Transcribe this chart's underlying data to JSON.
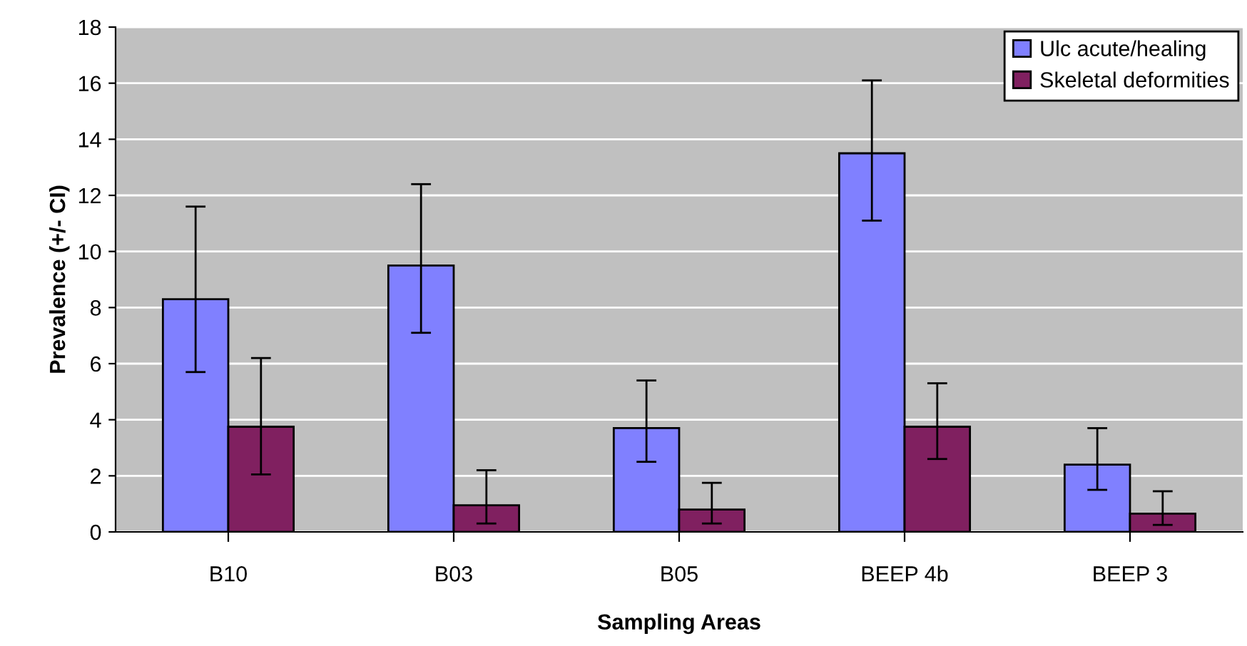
{
  "chart_data": {
    "type": "bar",
    "xlabel": "Sampling Areas",
    "ylabel": "Prevalence (+/- CI)",
    "categories": [
      "B10",
      "B03",
      "B05",
      "BEEP 4b",
      "BEEP 3"
    ],
    "series": [
      {
        "name": "Ulc acute/healing",
        "color": "#8080ff",
        "values": [
          8.3,
          9.5,
          3.7,
          13.5,
          2.4
        ],
        "errors": [
          [
            5.7,
            11.6
          ],
          [
            7.1,
            12.4
          ],
          [
            2.5,
            5.4
          ],
          [
            11.1,
            16.1
          ],
          [
            1.5,
            3.7
          ]
        ]
      },
      {
        "name": "Skeletal deformities",
        "color": "#802060",
        "values": [
          3.75,
          0.95,
          0.8,
          3.75,
          0.65
        ],
        "errors": [
          [
            2.05,
            6.2
          ],
          [
            0.3,
            2.2
          ],
          [
            0.3,
            1.75
          ],
          [
            2.6,
            5.3
          ],
          [
            0.25,
            1.45
          ]
        ]
      }
    ],
    "ylim": [
      0,
      18
    ],
    "yticks": [
      0,
      2,
      4,
      6,
      8,
      10,
      12,
      14,
      16,
      18
    ],
    "grid": "y",
    "legend": "top right"
  }
}
